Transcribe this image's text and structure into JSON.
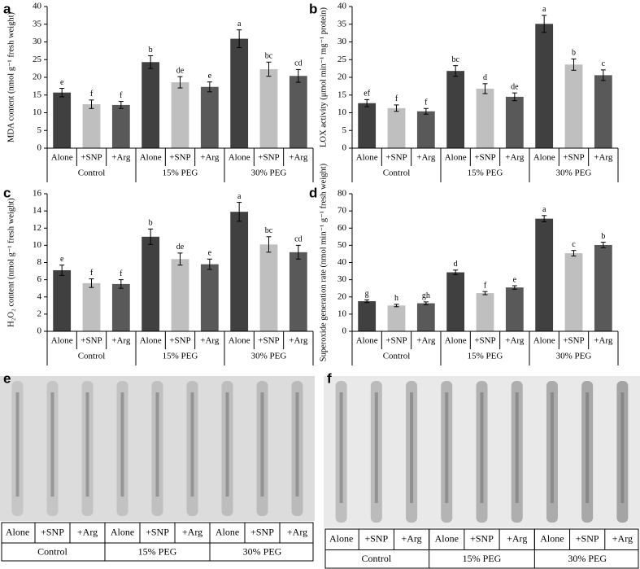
{
  "chart_data": [
    {
      "type": "bar",
      "panel_label": "a",
      "y_label": "MDA content (nmol g⁻¹ fresh weight)",
      "categories": [
        "Alone",
        "+SNP",
        "+Arg",
        "Alone",
        "+SNP",
        "+Arg",
        "Alone",
        "+SNP",
        "+Arg"
      ],
      "groups": [
        "Control",
        "15% PEG",
        "30% PEG"
      ],
      "values": [
        15.7,
        12.4,
        12.2,
        24.3,
        18.6,
        17.3,
        30.9,
        22.3,
        20.4
      ],
      "errors": [
        1.2,
        1.2,
        1.0,
        1.8,
        1.6,
        1.4,
        2.5,
        2.0,
        1.8
      ],
      "letters": [
        "e",
        "f",
        "f",
        "b",
        "de",
        "e",
        "a",
        "bc",
        "cd"
      ],
      "colors": [
        "#404040",
        "#bfbfbf",
        "#595959",
        "#404040",
        "#bfbfbf",
        "#595959",
        "#404040",
        "#bfbfbf",
        "#595959"
      ],
      "ylim": [
        0,
        40
      ],
      "yticks": [
        0,
        5,
        10,
        15,
        20,
        25,
        30,
        35,
        40
      ]
    },
    {
      "type": "bar",
      "panel_label": "b",
      "y_label": "LOX activity (μmol min⁻¹ mg⁻¹ protein)",
      "categories": [
        "Alone",
        "+SNP",
        "+Arg",
        "Alone",
        "+SNP",
        "+Arg",
        "Alone",
        "+SNP",
        "+Arg"
      ],
      "groups": [
        "Control",
        "15% PEG",
        "30% PEG"
      ],
      "values": [
        12.7,
        11.3,
        10.4,
        21.8,
        16.8,
        14.5,
        35.1,
        23.6,
        20.6
      ],
      "errors": [
        1.0,
        0.9,
        0.8,
        1.5,
        1.4,
        1.1,
        2.4,
        1.6,
        1.5
      ],
      "letters": [
        "ef",
        "f",
        "f",
        "bc",
        "d",
        "de",
        "a",
        "b",
        "c"
      ],
      "colors": [
        "#404040",
        "#bfbfbf",
        "#595959",
        "#404040",
        "#bfbfbf",
        "#595959",
        "#404040",
        "#bfbfbf",
        "#595959"
      ],
      "ylim": [
        0,
        40
      ],
      "yticks": [
        0,
        5,
        10,
        15,
        20,
        25,
        30,
        35,
        40
      ]
    },
    {
      "type": "bar",
      "panel_label": "c",
      "y_label": "H₂O₂ content (nmol g⁻¹ fresh weight)",
      "categories": [
        "Alone",
        "+SNP",
        "+Arg",
        "Alone",
        "+SNP",
        "+Arg",
        "Alone",
        "+SNP",
        "+Arg"
      ],
      "groups": [
        "Control",
        "15% PEG",
        "30% PEG"
      ],
      "values": [
        7.1,
        5.6,
        5.5,
        11.0,
        8.4,
        7.8,
        13.9,
        10.1,
        9.2
      ],
      "errors": [
        0.6,
        0.5,
        0.5,
        0.9,
        0.7,
        0.6,
        1.1,
        0.9,
        0.8
      ],
      "letters": [
        "e",
        "f",
        "f",
        "b",
        "de",
        "e",
        "a",
        "bc",
        "cd"
      ],
      "colors": [
        "#404040",
        "#bfbfbf",
        "#595959",
        "#404040",
        "#bfbfbf",
        "#595959",
        "#404040",
        "#bfbfbf",
        "#595959"
      ],
      "ylim": [
        0,
        16
      ],
      "yticks": [
        0,
        2,
        4,
        6,
        8,
        10,
        12,
        14,
        16
      ]
    },
    {
      "type": "bar",
      "panel_label": "d",
      "y_label": "Superoxide generation rate (nmol min⁻¹ g⁻¹ fresh weight)",
      "categories": [
        "Alone",
        "+SNP",
        "+Arg",
        "Alone",
        "+SNP",
        "+Arg",
        "Alone",
        "+SNP",
        "+Arg"
      ],
      "groups": [
        "Control",
        "15% PEG",
        "30% PEG"
      ],
      "values": [
        17.5,
        15.0,
        16.3,
        34.3,
        22.2,
        25.5,
        65.5,
        45.4,
        50.2
      ],
      "errors": [
        0.8,
        0.7,
        0.8,
        1.3,
        0.9,
        1.0,
        1.8,
        1.6,
        1.6
      ],
      "letters": [
        "g",
        "h",
        "gh",
        "d",
        "f",
        "e",
        "a",
        "c",
        "b"
      ],
      "colors": [
        "#404040",
        "#bfbfbf",
        "#595959",
        "#404040",
        "#bfbfbf",
        "#595959",
        "#404040",
        "#bfbfbf",
        "#595959"
      ],
      "ylim": [
        0,
        80
      ],
      "yticks": [
        0,
        10,
        20,
        30,
        40,
        50,
        60,
        70,
        80
      ]
    }
  ],
  "photo_panels": [
    {
      "panel_label": "e",
      "treatments": [
        "Alone",
        "+SNP",
        "+Arg",
        "Alone",
        "+SNP",
        "+Arg",
        "Alone",
        "+SNP",
        "+Arg"
      ],
      "groups": [
        "Control",
        "15% PEG",
        "30% PEG"
      ]
    },
    {
      "panel_label": "f",
      "treatments": [
        "Alone",
        "+SNP",
        "+Arg",
        "Alone",
        "+SNP",
        "+Arg",
        "Alone",
        "+SNP",
        "+Arg"
      ],
      "groups": [
        "Control",
        "15% PEG",
        "30% PEG"
      ]
    }
  ]
}
